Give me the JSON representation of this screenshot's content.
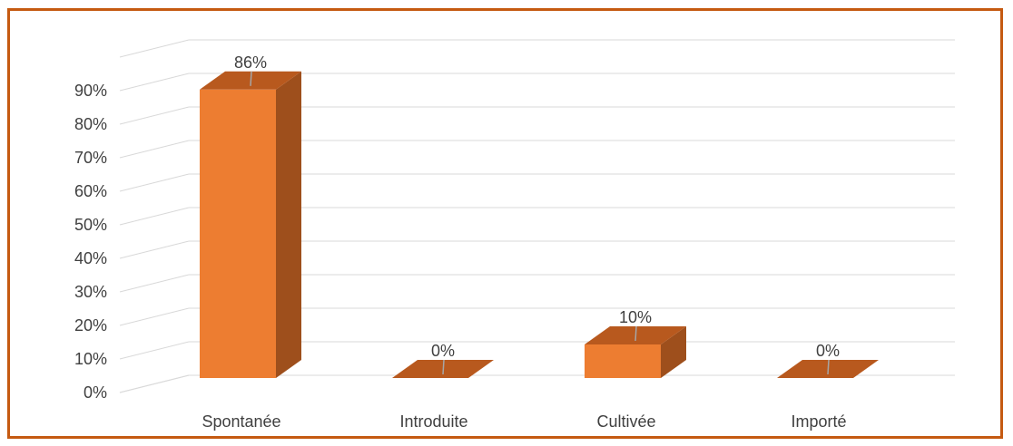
{
  "chart_data": {
    "type": "bar",
    "categories": [
      "Spontanée",
      "Introduite",
      "Cultivée",
      "Importé"
    ],
    "series": [
      {
        "values": [
          86,
          0,
          10,
          0
        ],
        "value_labels": [
          "86%",
          "0%",
          "10%",
          "0%"
        ]
      }
    ],
    "y_ticks": [
      "0%",
      "10%",
      "20%",
      "30%",
      "40%",
      "50%",
      "60%",
      "70%",
      "80%",
      "90%"
    ],
    "ylim": [
      0,
      90
    ],
    "title": "",
    "xlabel": "",
    "ylabel": "",
    "grid": true,
    "legend": "none",
    "style": "3d-column",
    "colors": {
      "bar_front": "#ed7d31",
      "bar_side": "#9e4f1c",
      "bar_top": "#b8591e",
      "frame": "#c55a11",
      "grid": "#d9d9d9",
      "text": "#404040"
    }
  }
}
